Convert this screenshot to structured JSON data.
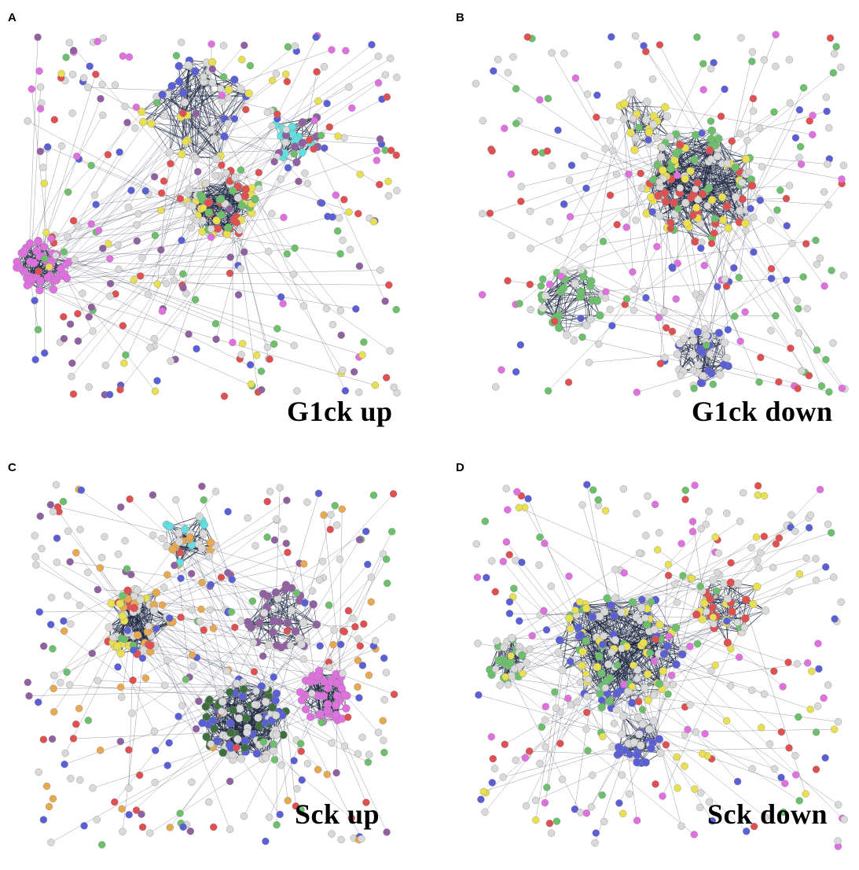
{
  "panels": [
    {
      "letter": "A",
      "caption": "G1ck up"
    },
    {
      "letter": "B",
      "caption": "G1ck down"
    },
    {
      "letter": "C",
      "caption": "Sck up"
    },
    {
      "letter": "D",
      "caption": "Sck down"
    }
  ],
  "colors": {
    "edge": "#1c2540",
    "node_gray": "#d9d9d9",
    "node_blue": "#5a5fd6",
    "node_red": "#e05050",
    "node_green": "#6cc06c",
    "node_yellow": "#e8e050",
    "node_magenta": "#e070e0",
    "node_cyan": "#60e0e0",
    "node_purple": "#9060a0",
    "node_orange": "#e8a850",
    "node_darkgreen": "#3d6e3d"
  }
}
